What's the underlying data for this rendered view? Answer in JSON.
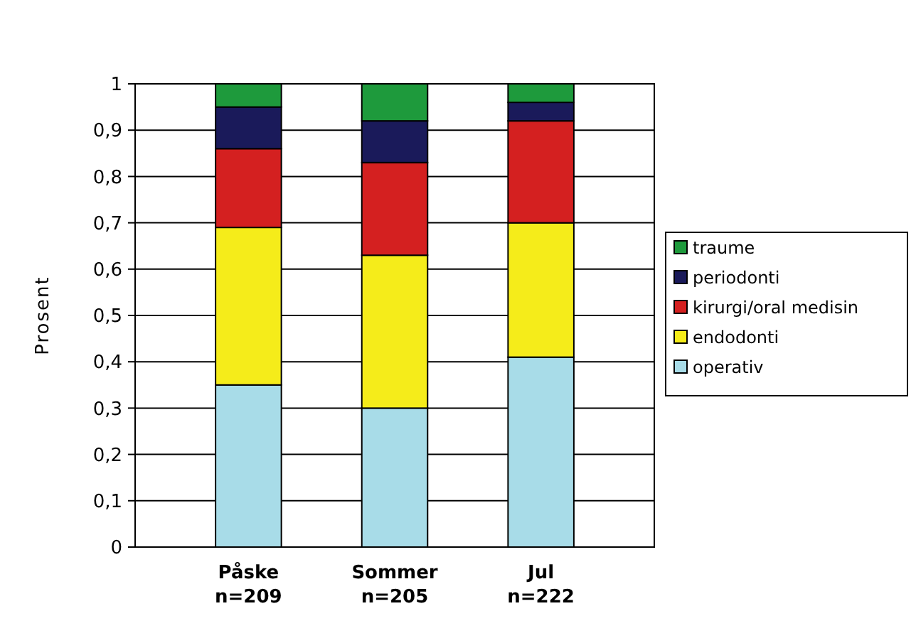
{
  "chart_data": {
    "type": "bar",
    "stacked": true,
    "ylabel": "Prosent",
    "categories": [
      "Påske\nn=209",
      "Sommer\nn=205",
      "Jul\nn=222"
    ],
    "series": [
      {
        "name": "operativ",
        "color": "#a8dce8",
        "values": [
          0.35,
          0.3,
          0.41
        ]
      },
      {
        "name": "endodonti",
        "color": "#f5ec1a",
        "values": [
          0.34,
          0.33,
          0.29
        ]
      },
      {
        "name": "kirurgi/oral medisin",
        "color": "#d42020",
        "values": [
          0.17,
          0.2,
          0.22
        ]
      },
      {
        "name": "periodonti",
        "color": "#1a1a5a",
        "values": [
          0.09,
          0.09,
          0.04
        ]
      },
      {
        "name": "traume",
        "color": "#1e9a3c",
        "values": [
          0.05,
          0.08,
          0.04
        ]
      }
    ],
    "ylim": [
      0,
      1
    ],
    "yticks": [
      0,
      {
        "value": 0.1,
        "label": "0,1"
      },
      {
        "value": 0.2,
        "label": "0,2"
      },
      {
        "value": 0.3,
        "label": "0,3"
      },
      {
        "value": 0.4,
        "label": "0,4"
      },
      {
        "value": 0.5,
        "label": "0,5"
      },
      {
        "value": 0.6,
        "label": "0,6"
      },
      {
        "value": 0.7,
        "label": "0,7"
      },
      {
        "value": 0.8,
        "label": "0,8"
      },
      {
        "value": 0.9,
        "label": "0,9"
      },
      1
    ],
    "grid": "y",
    "legend": "right"
  }
}
